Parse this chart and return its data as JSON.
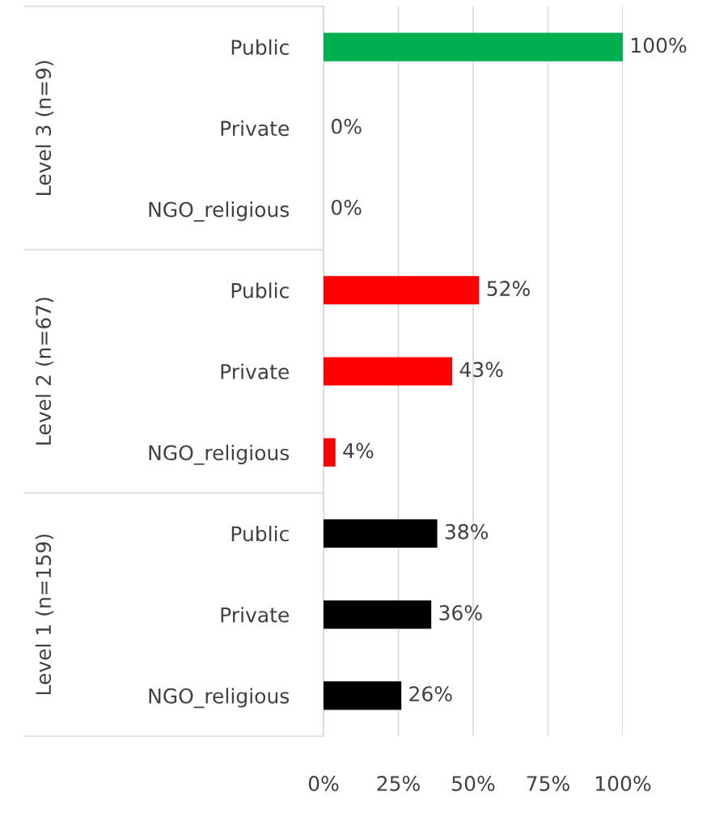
{
  "chart_data": {
    "type": "bar",
    "orientation": "horizontal",
    "categories": [
      "Public",
      "Private",
      "NGO_religious",
      "Public",
      "Private",
      "NGO_religious",
      "Public",
      "Private",
      "NGO_religious"
    ],
    "values": [
      100,
      0,
      0,
      52,
      43,
      4,
      38,
      36,
      26
    ],
    "colors": [
      "#00b050",
      "#00b050",
      "#00b050",
      "#ff0000",
      "#ff0000",
      "#ff0000",
      "#000000",
      "#000000",
      "#000000"
    ],
    "value_labels": [
      "100%",
      "0%",
      "0%",
      "52%",
      "43%",
      "4%",
      "38%",
      "36%",
      "26%"
    ],
    "annotations": [
      "Level 3 (n=9)",
      "Level 2 (n=67)",
      "Level 1 (n=159)"
    ],
    "xlim": [
      0,
      100
    ],
    "xticks": [
      {
        "value": 0,
        "label": "0%"
      },
      {
        "value": 25,
        "label": "25%"
      },
      {
        "value": 50,
        "label": "50%"
      },
      {
        "value": 75,
        "label": "75%"
      },
      {
        "value": 100,
        "label": "100%"
      }
    ],
    "grid": "x",
    "legend": false
  }
}
